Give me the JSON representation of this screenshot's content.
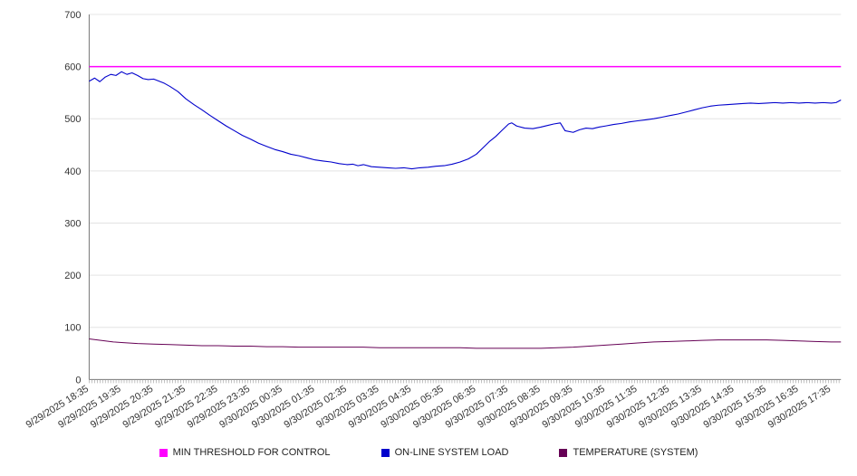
{
  "chart_data": {
    "type": "line",
    "title": "",
    "xlabel": "",
    "ylabel": "",
    "grid": true,
    "legend_position": "bottom",
    "ylim": [
      0,
      700
    ],
    "y_ticks": [
      0,
      100,
      200,
      300,
      400,
      500,
      600,
      700
    ],
    "x_range": [
      0,
      23.3
    ],
    "minor_tick_step_hours": 0.0833,
    "x_tick_labels": [
      "9/29/2025 18:35",
      "9/29/2025 19:35",
      "9/29/2025 20:35",
      "9/29/2025 21:35",
      "9/29/2025 22:35",
      "9/29/2025 23:35",
      "9/30/2025 00:35",
      "9/30/2025 01:35",
      "9/30/2025 02:35",
      "9/30/2025 03:35",
      "9/30/2025 04:35",
      "9/30/2025 05:35",
      "9/30/2025 06:35",
      "9/30/2025 07:35",
      "9/30/2025 08:35",
      "9/30/2025 09:35",
      "9/30/2025 10:35",
      "9/30/2025 11:35",
      "9/30/2025 12:35",
      "9/30/2025 13:35",
      "9/30/2025 14:35",
      "9/30/2025 15:35",
      "9/30/2025 16:35",
      "9/30/2025 17:35"
    ],
    "series": [
      {
        "name": "MIN THRESHOLD FOR CONTROL",
        "color": "#ff00ff",
        "width": 1.4,
        "points": [
          [
            0,
            600
          ],
          [
            23.3,
            600
          ]
        ]
      },
      {
        "name": "ON-LINE SYSTEM LOAD",
        "color": "#0000cc",
        "width": 1.1,
        "points": [
          [
            0,
            572
          ],
          [
            0.17,
            578
          ],
          [
            0.33,
            571
          ],
          [
            0.5,
            580
          ],
          [
            0.67,
            585
          ],
          [
            0.83,
            583
          ],
          [
            1,
            590
          ],
          [
            1.17,
            585
          ],
          [
            1.33,
            588
          ],
          [
            1.5,
            583
          ],
          [
            1.67,
            577
          ],
          [
            1.83,
            575
          ],
          [
            2,
            576
          ],
          [
            2.17,
            572
          ],
          [
            2.33,
            568
          ],
          [
            2.5,
            562
          ],
          [
            2.75,
            552
          ],
          [
            3,
            538
          ],
          [
            3.25,
            527
          ],
          [
            3.5,
            517
          ],
          [
            3.75,
            506
          ],
          [
            4,
            496
          ],
          [
            4.25,
            486
          ],
          [
            4.5,
            477
          ],
          [
            4.75,
            468
          ],
          [
            5,
            461
          ],
          [
            5.25,
            453
          ],
          [
            5.5,
            447
          ],
          [
            5.75,
            441
          ],
          [
            6,
            437
          ],
          [
            6.25,
            432
          ],
          [
            6.5,
            429
          ],
          [
            6.75,
            425
          ],
          [
            7,
            421
          ],
          [
            7.25,
            419
          ],
          [
            7.5,
            417
          ],
          [
            7.75,
            414
          ],
          [
            8,
            412
          ],
          [
            8.17,
            413
          ],
          [
            8.33,
            410
          ],
          [
            8.5,
            412
          ],
          [
            8.75,
            408
          ],
          [
            9,
            407
          ],
          [
            9.25,
            406
          ],
          [
            9.5,
            405
          ],
          [
            9.75,
            406
          ],
          [
            10,
            404
          ],
          [
            10.25,
            406
          ],
          [
            10.5,
            407
          ],
          [
            10.75,
            409
          ],
          [
            11,
            410
          ],
          [
            11.25,
            413
          ],
          [
            11.5,
            417
          ],
          [
            11.75,
            423
          ],
          [
            12,
            432
          ],
          [
            12.2,
            444
          ],
          [
            12.4,
            456
          ],
          [
            12.6,
            466
          ],
          [
            12.8,
            478
          ],
          [
            13,
            490
          ],
          [
            13.1,
            492
          ],
          [
            13.25,
            486
          ],
          [
            13.5,
            482
          ],
          [
            13.75,
            481
          ],
          [
            14,
            484
          ],
          [
            14.2,
            487
          ],
          [
            14.4,
            490
          ],
          [
            14.6,
            492
          ],
          [
            14.75,
            477
          ],
          [
            15,
            474
          ],
          [
            15.2,
            479
          ],
          [
            15.4,
            482
          ],
          [
            15.6,
            481
          ],
          [
            15.8,
            484
          ],
          [
            16,
            486
          ],
          [
            16.25,
            489
          ],
          [
            16.5,
            491
          ],
          [
            16.75,
            494
          ],
          [
            17,
            496
          ],
          [
            17.25,
            498
          ],
          [
            17.5,
            500
          ],
          [
            17.75,
            503
          ],
          [
            18,
            506
          ],
          [
            18.25,
            509
          ],
          [
            18.5,
            513
          ],
          [
            18.75,
            517
          ],
          [
            19,
            521
          ],
          [
            19.25,
            524
          ],
          [
            19.5,
            526
          ],
          [
            19.75,
            527
          ],
          [
            20,
            528
          ],
          [
            20.25,
            529
          ],
          [
            20.5,
            530
          ],
          [
            20.75,
            529
          ],
          [
            21,
            530
          ],
          [
            21.25,
            531
          ],
          [
            21.5,
            530
          ],
          [
            21.75,
            531
          ],
          [
            22,
            530
          ],
          [
            22.25,
            531
          ],
          [
            22.5,
            530
          ],
          [
            22.75,
            531
          ],
          [
            23,
            530
          ],
          [
            23.15,
            531
          ],
          [
            23.3,
            536
          ]
        ]
      },
      {
        "name": "TEMPERATURE (SYSTEM)",
        "color": "#660055",
        "width": 1,
        "points": [
          [
            0,
            78
          ],
          [
            0.25,
            76
          ],
          [
            0.5,
            74
          ],
          [
            0.75,
            72
          ],
          [
            1,
            71
          ],
          [
            1.5,
            69
          ],
          [
            2,
            68
          ],
          [
            2.5,
            67
          ],
          [
            3,
            66
          ],
          [
            3.5,
            65
          ],
          [
            4,
            65
          ],
          [
            4.5,
            64
          ],
          [
            5,
            64
          ],
          [
            5.5,
            63
          ],
          [
            6,
            63
          ],
          [
            6.5,
            62
          ],
          [
            7,
            62
          ],
          [
            7.5,
            62
          ],
          [
            8,
            62
          ],
          [
            8.5,
            62
          ],
          [
            9,
            61
          ],
          [
            9.5,
            61
          ],
          [
            10,
            61
          ],
          [
            10.5,
            61
          ],
          [
            11,
            61
          ],
          [
            11.5,
            61
          ],
          [
            12,
            60
          ],
          [
            12.5,
            60
          ],
          [
            13,
            60
          ],
          [
            13.5,
            60
          ],
          [
            14,
            60
          ],
          [
            14.5,
            61
          ],
          [
            15,
            62
          ],
          [
            15.5,
            64
          ],
          [
            16,
            66
          ],
          [
            16.5,
            68
          ],
          [
            17,
            70
          ],
          [
            17.5,
            72
          ],
          [
            18,
            73
          ],
          [
            18.5,
            74
          ],
          [
            19,
            75
          ],
          [
            19.5,
            76
          ],
          [
            20,
            76
          ],
          [
            20.5,
            76
          ],
          [
            21,
            76
          ],
          [
            21.5,
            75
          ],
          [
            22,
            74
          ],
          [
            22.5,
            73
          ],
          [
            23,
            72
          ],
          [
            23.3,
            72
          ]
        ]
      }
    ]
  },
  "legend": {
    "items": [
      {
        "label": "MIN THRESHOLD FOR CONTROL"
      },
      {
        "label": "ON-LINE SYSTEM LOAD"
      },
      {
        "label": "TEMPERATURE (SYSTEM)"
      }
    ]
  },
  "style": {
    "grid_color": "#e3e3e3",
    "axis_color": "#777777",
    "tick_color": "#999999",
    "label_color": "#333333"
  }
}
